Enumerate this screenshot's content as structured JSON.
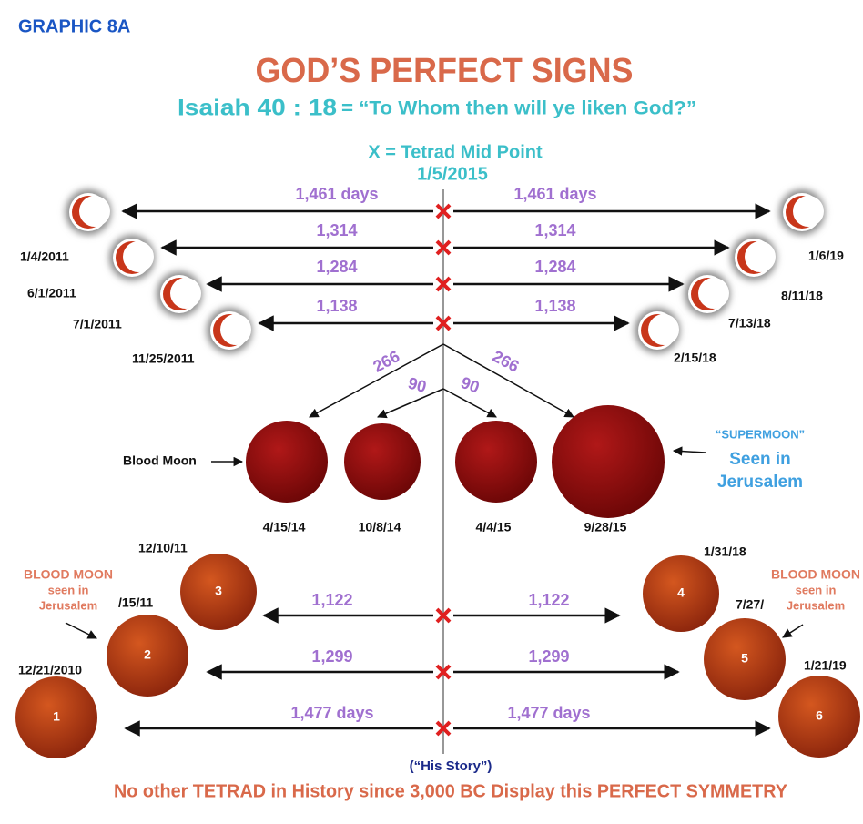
{
  "header": {
    "label": "GRAPHIC 8A",
    "title": "GOD’S PERFECT SIGNS",
    "verse": "Isaiah 40 : 18",
    "quote": "= “To Whom then will ye liken God?”"
  },
  "midpoint": {
    "label": "X = Tetrad Mid Point",
    "date": "1/5/2015"
  },
  "top_rows": [
    {
      "left_label": "1,461 days",
      "right_label": "1,461 days",
      "left_date": "1/4/2011",
      "right_date": "1/6/19"
    },
    {
      "left_label": "1,314",
      "right_label": "1,314",
      "left_date": "6/1/2011",
      "right_date": "8/11/18"
    },
    {
      "left_label": "1,284",
      "right_label": "1,284",
      "left_date": "7/1/2011",
      "right_date": "7/13/18"
    },
    {
      "left_label": "1,138",
      "right_label": "1,138",
      "left_date": "11/25/2011",
      "right_date": "2/15/18"
    }
  ],
  "branches": {
    "outer_left": "266",
    "outer_right": "266",
    "inner_left": "90",
    "inner_right": "90"
  },
  "blood_moons": {
    "label": "Blood Moon",
    "dates": [
      "4/15/14",
      "10/8/14",
      "4/4/15",
      "9/28/15"
    ]
  },
  "supermoon": {
    "label": "“SUPERMOON”",
    "note": [
      "Seen in",
      "Jerusalem"
    ]
  },
  "bottom_rows": [
    {
      "left_label": "1,122",
      "right_label": "1,122"
    },
    {
      "left_label": "1,299",
      "right_label": "1,299"
    },
    {
      "left_label": "1,477 days",
      "right_label": "1,477 days"
    }
  ],
  "bottom_moons": [
    {
      "number": "1",
      "date": "12/21/2010"
    },
    {
      "number": "2",
      "date": "/15/11"
    },
    {
      "number": "3",
      "date": "12/10/11"
    },
    {
      "number": "4",
      "date": "1/31/18"
    },
    {
      "number": "5",
      "date": "7/27/"
    },
    {
      "number": "6",
      "date": "1/21/19"
    }
  ],
  "jerusalem_notes": {
    "left": [
      "BLOOD MOON",
      "seen in",
      "Jerusalem"
    ],
    "right": [
      "BLOOD MOON",
      "seen in",
      "Jerusalem"
    ]
  },
  "footer": {
    "his_story": "(“His Story”)",
    "caption": "No other TETRAD in History since 3,000 BC Display this PERFECT SYMMETRY"
  }
}
